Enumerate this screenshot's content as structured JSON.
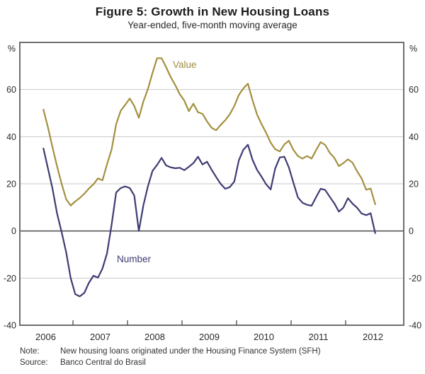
{
  "page": {
    "title": "Figure 5: Growth in New Housing Loans",
    "subtitle": "Year-ended, five-month moving average"
  },
  "axis": {
    "unit_left": "%",
    "unit_right": "%",
    "y_ticks": [
      60,
      40,
      20,
      0,
      -20,
      -40
    ],
    "x_year_labels": [
      "2006",
      "2007",
      "2008",
      "2009",
      "2010",
      "2011",
      "2012"
    ]
  },
  "series_labels": {
    "value": "Value",
    "number": "Number"
  },
  "footer": {
    "note_label": "Note:",
    "note_text": "New housing loans originated under the Housing Finance System (SFH)",
    "source_label": "Source:",
    "source_text": "Banco Central do Brasil"
  },
  "colors": {
    "value_line": "#a3903f",
    "number_line": "#3e3c74",
    "grid": "#c9c9c9",
    "zero_line": "#55565a",
    "frame": "#6f6f6f",
    "tick_text": "#2a2a2a"
  },
  "chart_data": {
    "type": "line",
    "title": "Figure 5: Growth in New Housing Loans",
    "subtitle": "Year-ended, five-month moving average",
    "ylabel": "%",
    "ylim": [
      -40,
      80
    ],
    "y_ticks": [
      60,
      40,
      20,
      0,
      -20,
      -40
    ],
    "grid": true,
    "frequency": "monthly",
    "x_start": "2006-06",
    "x_end": "2012-07",
    "x_axis_years": [
      2006,
      2007,
      2008,
      2009,
      2010,
      2011,
      2012
    ],
    "series": [
      {
        "name": "Value",
        "color": "#a3903f",
        "values": [
          51.5,
          44,
          35.5,
          27.5,
          20,
          13.5,
          10.8,
          12.5,
          14,
          15.8,
          18,
          19.8,
          22.3,
          21.5,
          28.3,
          34.5,
          45.3,
          51,
          53.5,
          56.2,
          53,
          48,
          55,
          60.3,
          67,
          73.3,
          73.3,
          69.5,
          65.3,
          61.9,
          58,
          55.3,
          50.8,
          54,
          50.4,
          49.7,
          46.5,
          43.8,
          42.7,
          45,
          47,
          49.5,
          53,
          57.7,
          60.5,
          62.5,
          55.5,
          49.4,
          45.3,
          41.7,
          37.5,
          34.7,
          33.7,
          36.7,
          38.3,
          34.4,
          31.8,
          30.7,
          31.8,
          30.7,
          34.3,
          37.7,
          36.5,
          33.2,
          31,
          27.5,
          28.8,
          30.4,
          29,
          25.4,
          22.3,
          17.5,
          18,
          11.3
        ]
      },
      {
        "name": "Number",
        "color": "#3e3c74",
        "values": [
          35,
          26.5,
          18,
          7.5,
          -0.5,
          -9,
          -20,
          -26.8,
          -27.8,
          -26.3,
          -22,
          -19,
          -19.8,
          -15.9,
          -9.5,
          2.5,
          16.3,
          18.2,
          18.9,
          18.2,
          15,
          0,
          11,
          19,
          25.5,
          28,
          31,
          27.8,
          27,
          26.6,
          26.8,
          25.8,
          27.2,
          28.8,
          31.5,
          28.2,
          29.4,
          26,
          22.9,
          20,
          17.9,
          18.6,
          21,
          30,
          34.5,
          36.6,
          30.2,
          25.9,
          23,
          19.8,
          17.6,
          26.5,
          31.2,
          31.5,
          27,
          20.5,
          14.2,
          12,
          11.1,
          10.7,
          14.4,
          17.9,
          17.4,
          14.5,
          11.7,
          8.2,
          9.9,
          13.9,
          11.6,
          9.9,
          7.4,
          6.7,
          7.5,
          -0.9
        ]
      }
    ]
  }
}
